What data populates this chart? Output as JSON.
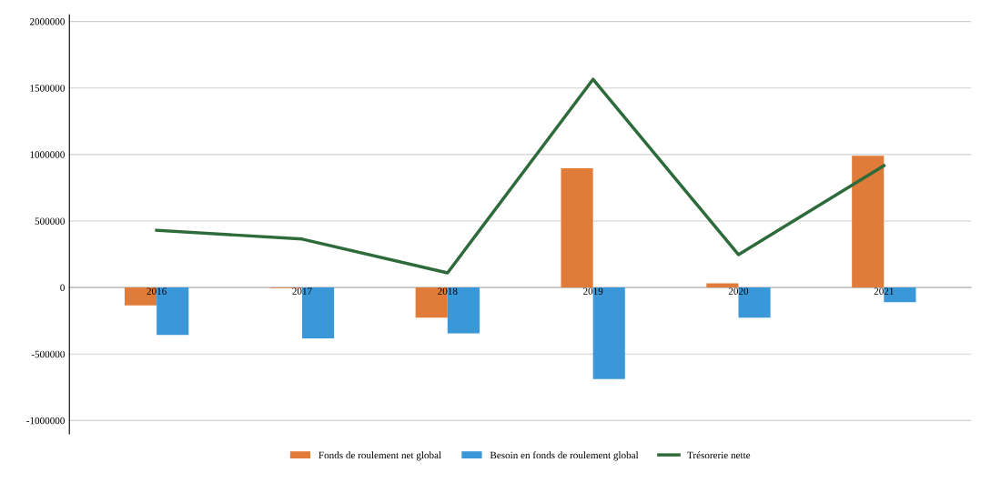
{
  "chart_data": {
    "type": "bar",
    "categories": [
      "2016",
      "2017",
      "2018",
      "2019",
      "2020",
      "2021"
    ],
    "series": [
      {
        "name": "Fonds de roulement net global",
        "color": "#e07b39",
        "values": [
          -135000,
          -5000,
          -227000,
          896000,
          32000,
          990000
        ]
      },
      {
        "name": "Besoin en fonds de roulement global",
        "color": "#3a97d8",
        "values": [
          -357000,
          -383000,
          -344000,
          -688000,
          -227000,
          -110000
        ]
      },
      {
        "name": "Trésorerie nette",
        "type": "line",
        "color": "#2e6b3a",
        "values": [
          430000,
          364000,
          110000,
          1565000,
          247000,
          916000
        ]
      }
    ],
    "ylim": [
      -1100000,
      2050000
    ],
    "yticks": [
      -1000000,
      -500000,
      0,
      500000,
      1000000,
      1500000,
      2000000
    ],
    "grid": "y",
    "legend": "bottom"
  }
}
